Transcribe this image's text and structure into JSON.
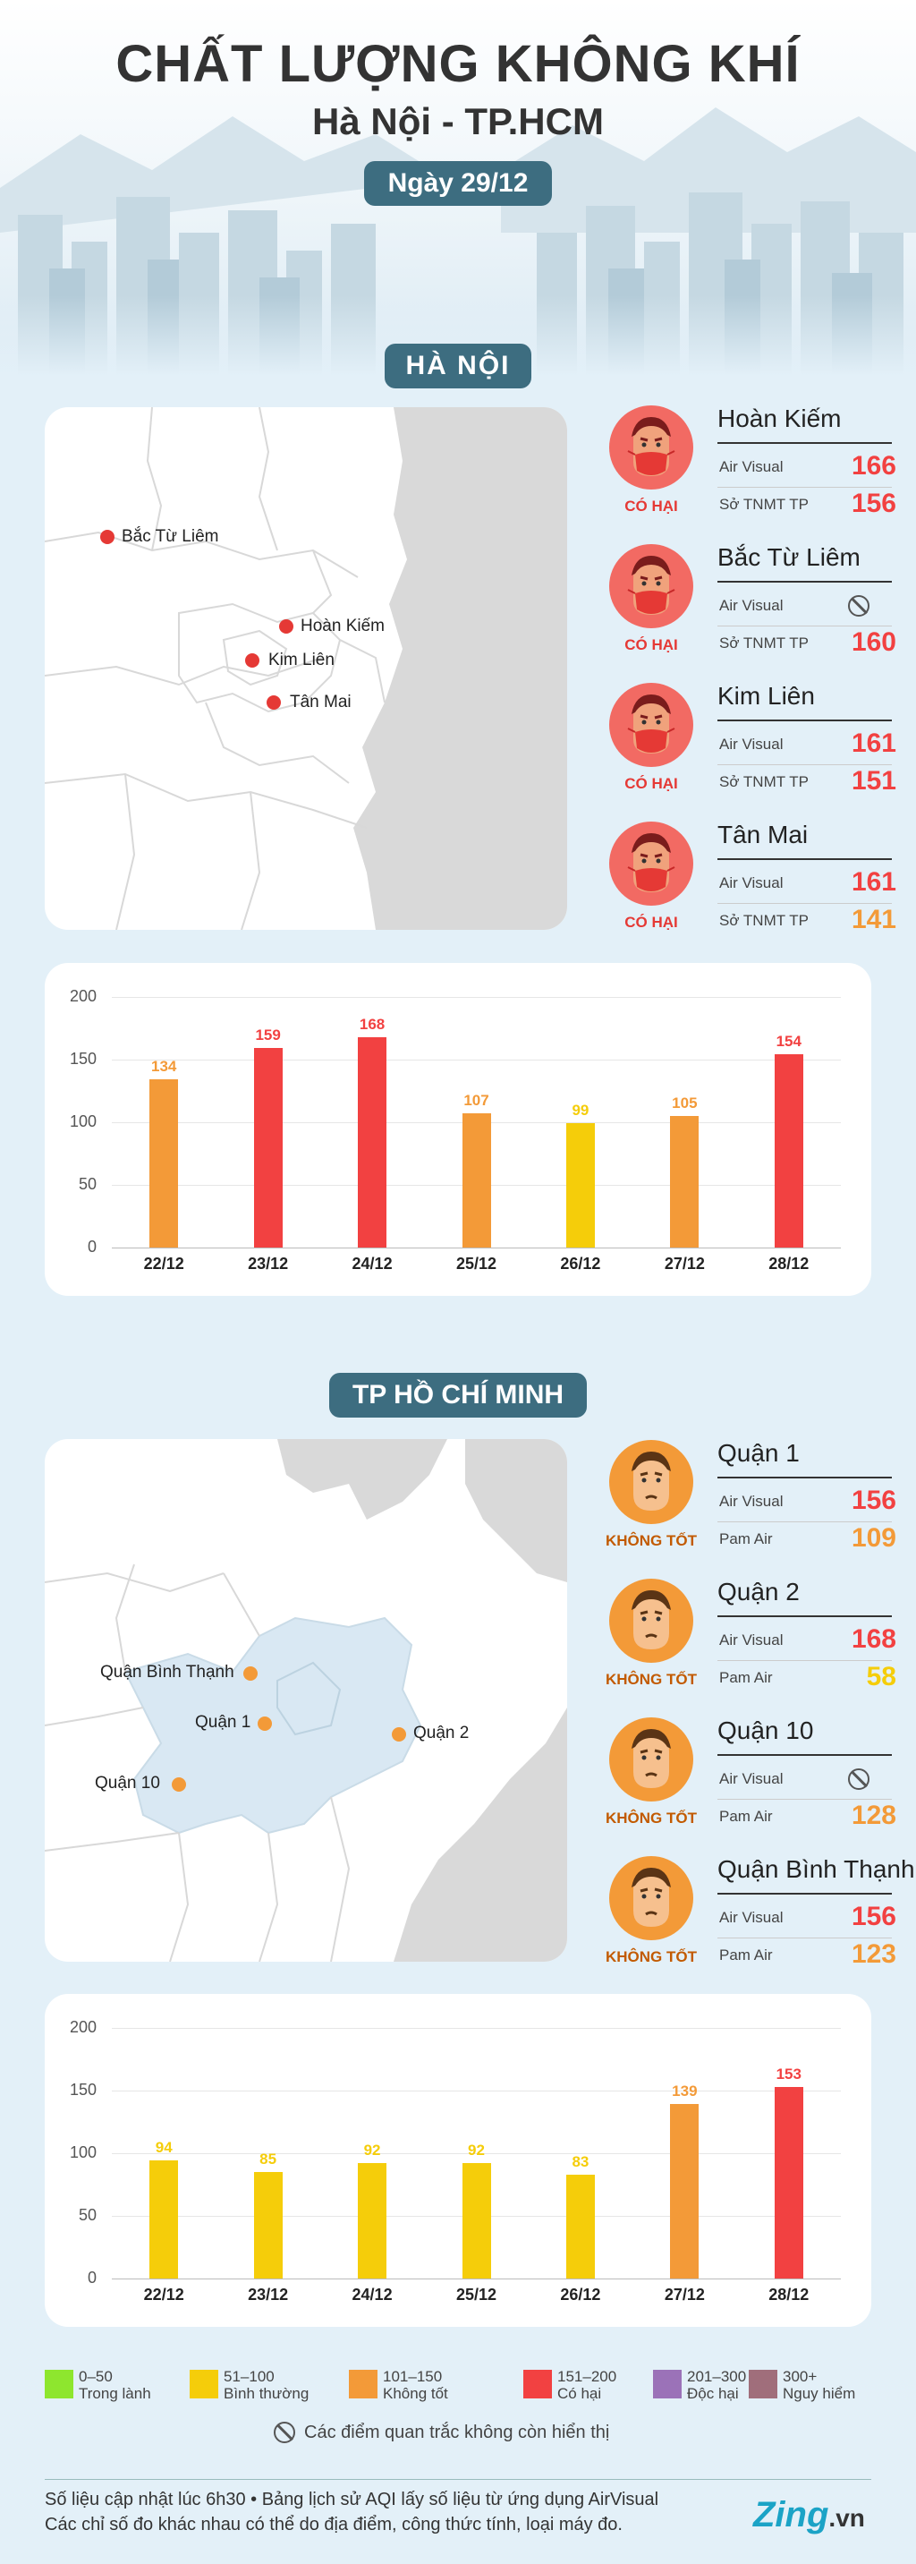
{
  "header": {
    "title": "CHẤT LƯỢNG KHÔNG KHÍ",
    "subtitle": "Hà Nội - TP.HCM",
    "date": "Ngày 29/12"
  },
  "colors": {
    "good": "#8ee62e",
    "moderate": "#f5cd0a",
    "sensitive": "#f39a38",
    "unhealthy": "#f24141",
    "very_unhealthy": "#9b72b8",
    "hazardous": "#a06e7b",
    "accent": "#3d6d80"
  },
  "hanoi": {
    "section_title": "HÀ NỘI",
    "map_labels": [
      "Bắc Từ Liêm",
      "Hoàn Kiếm",
      "Kim Liên",
      "Tân Mai"
    ],
    "stations": [
      {
        "name": "Hoàn Kiếm",
        "status": "CÓ HẠI",
        "rows": [
          {
            "source": "Air Visual",
            "value": "166",
            "color": "#f24141"
          },
          {
            "source": "Sở TNMT TP",
            "value": "156",
            "color": "#f24141"
          }
        ]
      },
      {
        "name": "Bắc Từ Liêm",
        "status": "CÓ HẠI",
        "rows": [
          {
            "source": "Air Visual",
            "value": null,
            "color": "#555555"
          },
          {
            "source": "Sở TNMT TP",
            "value": "160",
            "color": "#f24141"
          }
        ]
      },
      {
        "name": "Kim Liên",
        "status": "CÓ HẠI",
        "rows": [
          {
            "source": "Air Visual",
            "value": "161",
            "color": "#f24141"
          },
          {
            "source": "Sở TNMT TP",
            "value": "151",
            "color": "#f24141"
          }
        ]
      },
      {
        "name": "Tân Mai",
        "status": "CÓ HẠI",
        "rows": [
          {
            "source": "Air Visual",
            "value": "161",
            "color": "#f24141"
          },
          {
            "source": "Sở TNMT TP",
            "value": "141",
            "color": "#f39a38"
          }
        ]
      }
    ]
  },
  "hcm": {
    "section_title": "TP HỒ CHÍ MINH",
    "map_labels": [
      "Quận Bình Thạnh",
      "Quận 1",
      "Quận 2",
      "Quận 10"
    ],
    "stations": [
      {
        "name": "Quận 1",
        "status": "KHÔNG TỐT",
        "rows": [
          {
            "source": "Air Visual",
            "value": "156",
            "color": "#f24141"
          },
          {
            "source": "Pam Air",
            "value": "109",
            "color": "#f39a38"
          }
        ]
      },
      {
        "name": "Quận 2",
        "status": "KHÔNG TỐT",
        "rows": [
          {
            "source": "Air Visual",
            "value": "168",
            "color": "#f24141"
          },
          {
            "source": "Pam Air",
            "value": "58",
            "color": "#f5cd0a"
          }
        ]
      },
      {
        "name": "Quận 10",
        "status": "KHÔNG TỐT",
        "rows": [
          {
            "source": "Air Visual",
            "value": null,
            "color": "#555555"
          },
          {
            "source": "Pam Air",
            "value": "128",
            "color": "#f39a38"
          }
        ]
      },
      {
        "name": "Quận Bình Thạnh",
        "status": "KHÔNG TỐT",
        "rows": [
          {
            "source": "Air Visual",
            "value": "156",
            "color": "#f24141"
          },
          {
            "source": "Pam Air",
            "value": "123",
            "color": "#f39a38"
          }
        ]
      }
    ]
  },
  "chart_data": [
    {
      "type": "bar",
      "categories": [
        "22/12",
        "23/12",
        "24/12",
        "25/12",
        "26/12",
        "27/12",
        "28/12"
      ],
      "values": [
        134,
        159,
        168,
        107,
        99,
        105,
        154
      ],
      "colors": [
        "#f39a38",
        "#f24141",
        "#f24141",
        "#f39a38",
        "#f5cd0a",
        "#f39a38",
        "#f24141"
      ],
      "ylim": [
        0,
        200
      ],
      "yticks": [
        0,
        50,
        100,
        150,
        200
      ],
      "grid": true
    },
    {
      "type": "bar",
      "categories": [
        "22/12",
        "23/12",
        "24/12",
        "25/12",
        "26/12",
        "27/12",
        "28/12"
      ],
      "values": [
        94,
        85,
        92,
        92,
        83,
        139,
        153
      ],
      "colors": [
        "#f5cd0a",
        "#f5cd0a",
        "#f5cd0a",
        "#f5cd0a",
        "#f5cd0a",
        "#f39a38",
        "#f24141"
      ],
      "ylim": [
        0,
        200
      ],
      "yticks": [
        0,
        50,
        100,
        150,
        200
      ],
      "grid": true
    }
  ],
  "legend": [
    {
      "range": "0–50",
      "name": "Trong lành",
      "color": "#8ee62e"
    },
    {
      "range": "51–100",
      "name": "Bình thường",
      "color": "#f5cd0a"
    },
    {
      "range": "101–150",
      "name": "Không tốt",
      "color": "#f39a38"
    },
    {
      "range": "151–200",
      "name": "Có hại",
      "color": "#f24141"
    },
    {
      "range": "201–300",
      "name": "Độc hại",
      "color": "#9b72b8"
    },
    {
      "range": "300+",
      "name": "Nguy hiểm",
      "color": "#a06e7b"
    }
  ],
  "na_note": "Các điểm quan trắc không còn hiển thị",
  "footer": {
    "line1": "Số liệu cập nhật lúc 6h30 • Bảng lịch sử AQI lấy số liệu từ ứng dụng AirVisual",
    "line2": "Các chỉ số đo khác nhau có thể do địa điểm, công thức tính, loại máy đo.",
    "brand": "Zing",
    ".vn": ".vn",
    "brand_suffix": ".vn"
  }
}
